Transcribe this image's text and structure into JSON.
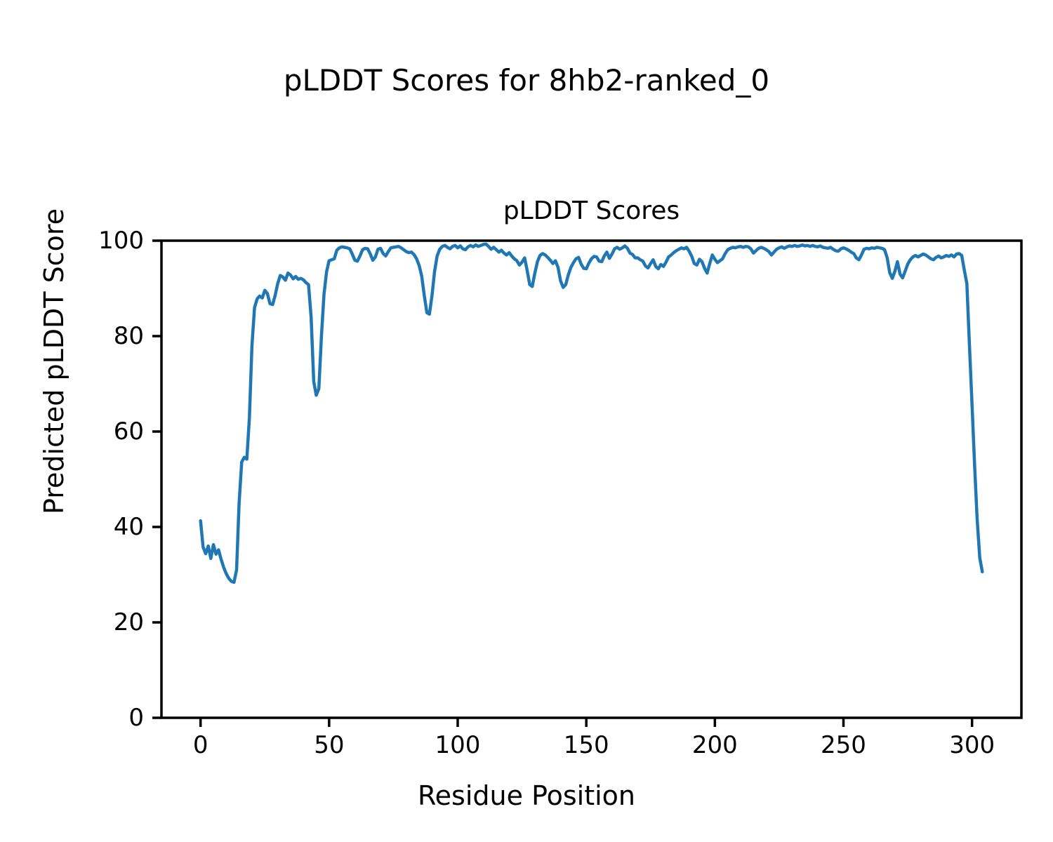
{
  "figure": {
    "suptitle": "pLDDT Scores for 8hb2-ranked_0",
    "axes_title": "pLDDT Scores",
    "xlabel": "Residue Position",
    "ylabel": "Predicted pLDDT Score"
  },
  "chart_data": {
    "type": "line",
    "title": "pLDDT Scores",
    "suptitle": "pLDDT Scores for 8hb2-ranked_0",
    "xlabel": "Residue Position",
    "ylabel": "Predicted pLDDT Score",
    "series_name": "pLDDT per residue",
    "line_color": "#1f77b4",
    "xlim": [
      -15.2,
      319.2
    ],
    "ylim": [
      0,
      100
    ],
    "xticks": [
      0,
      50,
      100,
      150,
      200,
      250,
      300
    ],
    "yticks": [
      0,
      20,
      40,
      60,
      80,
      100
    ],
    "grid": false,
    "legend": false,
    "x_start": 0,
    "x_step": 1,
    "values": [
      41.3,
      35.8,
      34.4,
      36.0,
      33.4,
      36.3,
      34.3,
      35.2,
      33.2,
      31.5,
      30.2,
      29.2,
      28.6,
      28.4,
      31.0,
      45.0,
      53.6,
      54.6,
      54.2,
      63.0,
      78.0,
      86.0,
      87.8,
      88.4,
      88.0,
      89.6,
      88.9,
      86.8,
      86.6,
      88.5,
      91.0,
      92.7,
      92.4,
      91.7,
      93.2,
      92.8,
      92.0,
      92.5,
      91.9,
      92.1,
      91.8,
      91.2,
      90.8,
      84.0,
      70.5,
      67.6,
      69.0,
      80.0,
      88.7,
      93.5,
      95.8,
      96.0,
      96.2,
      98.0,
      98.5,
      98.7,
      98.6,
      98.5,
      98.3,
      97.2,
      95.9,
      95.7,
      96.8,
      98.1,
      98.4,
      98.3,
      97.2,
      95.9,
      96.6,
      98.2,
      98.4,
      97.3,
      96.8,
      97.7,
      98.5,
      98.6,
      98.7,
      98.8,
      98.5,
      98.1,
      97.7,
      97.5,
      97.6,
      97.1,
      96.2,
      94.8,
      92.6,
      88.5,
      84.9,
      84.6,
      88.5,
      93.5,
      96.8,
      98.2,
      98.8,
      99.0,
      98.6,
      98.3,
      98.8,
      99.0,
      98.5,
      98.9,
      98.3,
      98.1,
      98.7,
      99.0,
      98.7,
      99.1,
      98.8,
      99.0,
      99.2,
      99.3,
      98.8,
      98.2,
      98.6,
      98.1,
      97.6,
      98.0,
      97.4,
      97.0,
      97.5,
      96.8,
      96.2,
      95.8,
      94.9,
      95.5,
      96.4,
      93.8,
      90.8,
      90.4,
      93.2,
      95.6,
      96.9,
      97.3,
      97.0,
      96.5,
      95.9,
      95.2,
      95.8,
      94.4,
      91.6,
      90.2,
      90.8,
      92.8,
      94.4,
      95.4,
      96.2,
      96.5,
      95.1,
      94.2,
      94.1,
      95.3,
      96.2,
      96.7,
      96.6,
      95.7,
      95.6,
      96.8,
      97.6,
      96.3,
      97.2,
      98.3,
      98.6,
      98.2,
      98.5,
      98.9,
      98.4,
      97.4,
      97.1,
      96.4,
      96.4,
      96.0,
      95.7,
      94.7,
      94.3,
      95.2,
      96.0,
      94.6,
      94.1,
      95.0,
      94.6,
      95.5,
      96.6,
      97.0,
      97.5,
      97.9,
      98.2,
      98.5,
      98.3,
      98.6,
      97.8,
      96.7,
      95.2,
      94.9,
      96.1,
      95.6,
      94.2,
      93.2,
      95.2,
      97.0,
      96.1,
      95.4,
      95.8,
      96.2,
      97.3,
      98.1,
      98.4,
      98.6,
      98.5,
      98.7,
      98.8,
      98.6,
      98.8,
      98.7,
      98.3,
      97.4,
      97.9,
      98.4,
      98.6,
      98.4,
      98.1,
      97.7,
      97.0,
      97.6,
      98.2,
      98.5,
      98.7,
      98.4,
      98.7,
      98.9,
      98.8,
      99.0,
      98.8,
      98.9,
      99.1,
      98.9,
      99.0,
      98.8,
      99.0,
      98.8,
      98.7,
      98.9,
      98.6,
      98.5,
      98.4,
      98.6,
      98.2,
      97.9,
      97.8,
      98.3,
      98.5,
      98.3,
      98.0,
      97.6,
      97.3,
      96.4,
      96.0,
      97.0,
      98.2,
      98.4,
      98.3,
      98.5,
      98.4,
      98.6,
      98.5,
      98.4,
      98.1,
      96.4,
      93.3,
      92.1,
      93.6,
      95.6,
      93.0,
      92.2,
      93.6,
      95.1,
      96.0,
      96.6,
      96.9,
      96.6,
      96.9,
      97.2,
      97.0,
      96.6,
      96.2,
      96.0,
      96.5,
      96.8,
      96.4,
      96.6,
      96.9,
      96.7,
      97.0,
      96.6,
      97.2,
      97.3,
      96.9,
      93.8,
      91.0,
      78.0,
      65.5,
      53.0,
      41.5,
      33.5,
      30.6
    ]
  }
}
